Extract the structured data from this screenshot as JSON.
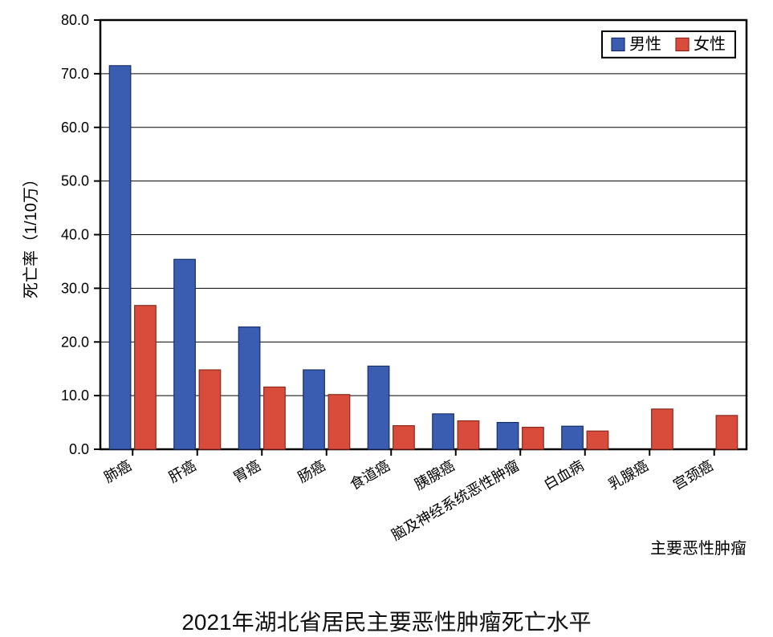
{
  "chart": {
    "type": "bar",
    "title": "2021年湖北省居民主要恶性肿瘤死亡水平",
    "title_fontsize": 28,
    "y_axis_title": "死亡率（1/10万）",
    "x_axis_title": "主要恶性肿瘤",
    "axis_label_fontsize": 20,
    "tick_fontsize": 18,
    "ylim": [
      0,
      80
    ],
    "ytick_step": 10,
    "ytick_decimals": 1,
    "background_color": "#ffffff",
    "grid_color": "#000000",
    "border_color": "#000000",
    "bar_group_gap": 0.28,
    "bar_inner_gap": 0.06,
    "categories": [
      "肺癌",
      "肝癌",
      "胃癌",
      "肠癌",
      "食道癌",
      "胰腺癌",
      "脑及神经系统恶性肿瘤",
      "白血病",
      "乳腺癌",
      "宫颈癌"
    ],
    "series": [
      {
        "name": "男性",
        "color": "#3a5db1",
        "edge_color": "#1a2f6a",
        "values": [
          71.5,
          35.4,
          22.8,
          14.8,
          15.5,
          6.6,
          5.0,
          4.3,
          null,
          null
        ]
      },
      {
        "name": "女性",
        "color": "#d94b3a",
        "edge_color": "#8a2a1f",
        "values": [
          26.8,
          14.8,
          11.6,
          10.2,
          4.4,
          5.3,
          4.1,
          3.4,
          7.5,
          6.3
        ]
      }
    ],
    "legend": {
      "position": "top-right",
      "border_color": "#000000",
      "swatch_size": 16,
      "fontsize": 20
    },
    "x_label_rotation_deg": -30
  }
}
